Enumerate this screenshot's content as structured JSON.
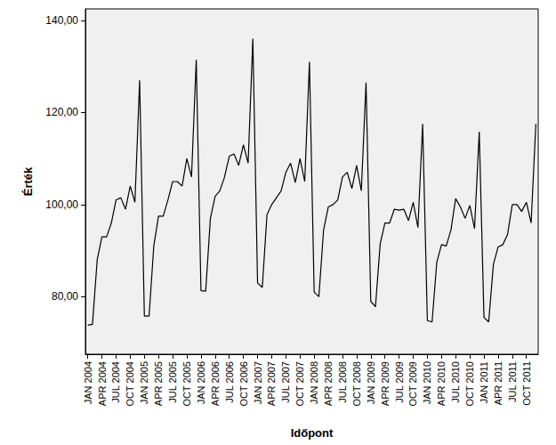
{
  "chart_data": {
    "type": "line",
    "x_label": "Időpont",
    "y_label": "Érték",
    "categories": [
      "JAN 2004",
      null,
      null,
      "APR 2004",
      null,
      null,
      "JUL 2004",
      null,
      null,
      "OCT 2004",
      null,
      null,
      "JAN 2005",
      null,
      null,
      "APR 2005",
      null,
      null,
      "JUL 2005",
      null,
      null,
      "OCT 2005",
      null,
      null,
      "JAN 2006",
      null,
      null,
      "APR 2006",
      null,
      null,
      "JUL 2006",
      null,
      null,
      "OCT 2006",
      null,
      null,
      "JAN 2007",
      null,
      null,
      "APR 2007",
      null,
      null,
      "JUL 2007",
      null,
      null,
      "OCT 2007",
      null,
      null,
      "JAN 2008",
      null,
      null,
      "APR 2008",
      null,
      null,
      "JUL 2008",
      null,
      null,
      "OCT 2008",
      null,
      null,
      "JAN 2009",
      null,
      null,
      "APR 2009",
      null,
      null,
      "JUL 2009",
      null,
      null,
      "OCT 2009",
      null,
      null,
      "JAN 2010",
      null,
      null,
      "APR 2010",
      null,
      null,
      "JUL 2010",
      null,
      null,
      "OCT 2010",
      null,
      null,
      "JAN 2011",
      null,
      null,
      "APR 2011",
      null,
      null,
      "JUL 2011",
      null,
      null,
      "OCT 2011",
      null,
      null
    ],
    "values": [
      73.8,
      74,
      88,
      93,
      93,
      96,
      101,
      101.5,
      99,
      104,
      100.5,
      127,
      75.8,
      75.8,
      91,
      97.5,
      97.5,
      101,
      105,
      105,
      104,
      110,
      106,
      131.5,
      81.3,
      81.2,
      97,
      101.8,
      103,
      106,
      110.5,
      111,
      108.5,
      113,
      109,
      136,
      83,
      82,
      97.8,
      100,
      101.5,
      103,
      107,
      109,
      104.8,
      110,
      105,
      131,
      81,
      80,
      94.5,
      99.5,
      100,
      101,
      106,
      107,
      103.5,
      108.5,
      103,
      126.5,
      79,
      77.8,
      91.5,
      96,
      96,
      99,
      98.8,
      99,
      96.5,
      100.5,
      95,
      117.5,
      74.8,
      74.5,
      87.5,
      91.3,
      91,
      94.5,
      101.3,
      99.5,
      97,
      99.8,
      94.8,
      115.8,
      75.5,
      74.5,
      87,
      90.8,
      91.3,
      93.5,
      100,
      100,
      98.5,
      100.5,
      96,
      117.5
    ],
    "color": "#000000",
    "ylim": [
      67.5,
      142.5
    ],
    "yticks": [
      {
        "value": 80,
        "label": "80,00"
      },
      {
        "value": 100,
        "label": "100,00"
      },
      {
        "value": 120,
        "label": "120,00"
      },
      {
        "value": 140,
        "label": "140,00"
      }
    ],
    "grid": false,
    "marker": "none",
    "line_style": "solid"
  }
}
